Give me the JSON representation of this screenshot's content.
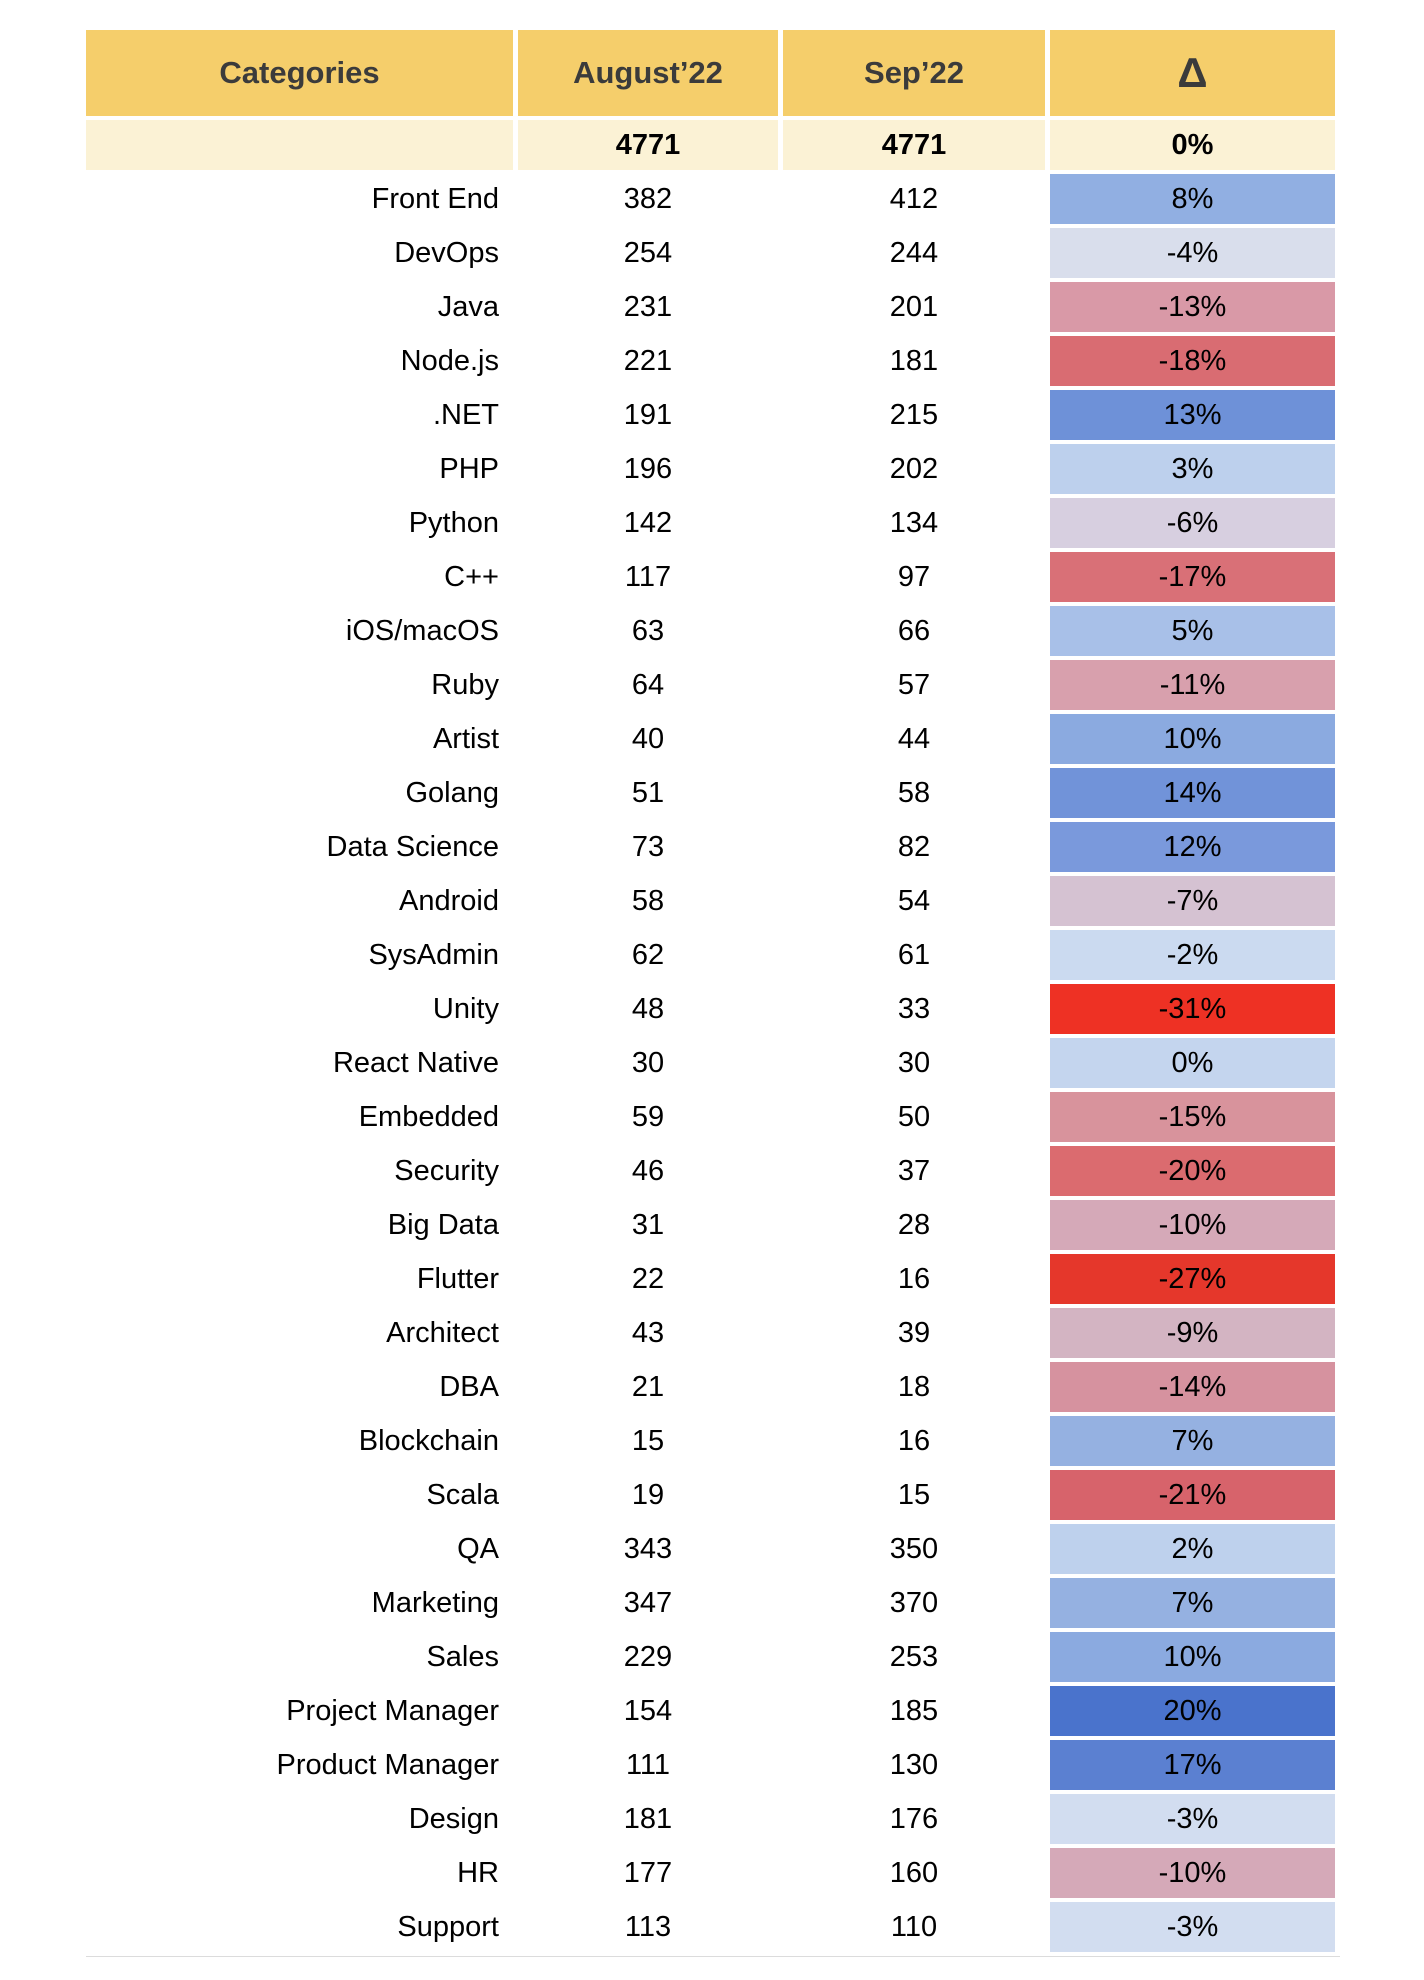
{
  "page": {
    "background": "#FFFFFF"
  },
  "colors": {
    "header_bg": "#F5CE6B",
    "totals_bg": "#FBF2D5",
    "header_text": "#3B3B3B",
    "body_text": "#000000",
    "positive_max_blue": "#4A73CC",
    "negative_max_red": "#EE3124"
  },
  "chart_data": {
    "type": "table",
    "columns": [
      "Categories",
      "August’22",
      "Sep’22",
      "Δ"
    ],
    "total": {
      "august": "4771",
      "sep": "4771",
      "delta": "0%"
    },
    "rows": [
      {
        "category": "Front End",
        "august": 382,
        "sep": 412,
        "delta": "8%",
        "delta_pct": 8,
        "delta_color": "#91AFE2"
      },
      {
        "category": "DevOps",
        "august": 254,
        "sep": 244,
        "delta": "-4%",
        "delta_pct": -4,
        "delta_color": "#D9DEEC"
      },
      {
        "category": "Java",
        "august": 231,
        "sep": 201,
        "delta": "-13%",
        "delta_pct": -13,
        "delta_color": "#D999A7"
      },
      {
        "category": "Node.js",
        "august": 221,
        "sep": 181,
        "delta": "-18%",
        "delta_pct": -18,
        "delta_color": "#D96C72"
      },
      {
        "category": ".NET",
        "august": 191,
        "sep": 215,
        "delta": "13%",
        "delta_pct": 13,
        "delta_color": "#6E91D8"
      },
      {
        "category": "PHP",
        "august": 196,
        "sep": 202,
        "delta": "3%",
        "delta_pct": 3,
        "delta_color": "#BDD0ED"
      },
      {
        "category": "Python",
        "august": 142,
        "sep": 134,
        "delta": "-6%",
        "delta_pct": -6,
        "delta_color": "#D7CFE0"
      },
      {
        "category": "C++",
        "august": 117,
        "sep": 97,
        "delta": "-17%",
        "delta_pct": -17,
        "delta_color": "#D97077"
      },
      {
        "category": "iOS/macOS",
        "august": 63,
        "sep": 66,
        "delta": "5%",
        "delta_pct": 5,
        "delta_color": "#A8C0E8"
      },
      {
        "category": "Ruby",
        "august": 64,
        "sep": 57,
        "delta": "-11%",
        "delta_pct": -11,
        "delta_color": "#D8A0AD"
      },
      {
        "category": "Artist",
        "august": 40,
        "sep": 44,
        "delta": "10%",
        "delta_pct": 10,
        "delta_color": "#8BAAE0"
      },
      {
        "category": "Golang",
        "august": 51,
        "sep": 58,
        "delta": "14%",
        "delta_pct": 14,
        "delta_color": "#7193D9"
      },
      {
        "category": "Data Science",
        "august": 73,
        "sep": 82,
        "delta": "12%",
        "delta_pct": 12,
        "delta_color": "#7A99DC"
      },
      {
        "category": "Android",
        "august": 58,
        "sep": 54,
        "delta": "-7%",
        "delta_pct": -7,
        "delta_color": "#D5C2D2"
      },
      {
        "category": "SysAdmin",
        "august": 62,
        "sep": 61,
        "delta": "-2%",
        "delta_pct": -2,
        "delta_color": "#CBDAF0"
      },
      {
        "category": "Unity",
        "august": 48,
        "sep": 33,
        "delta": "-31%",
        "delta_pct": -31,
        "delta_color": "#EE3124"
      },
      {
        "category": "React Native",
        "august": 30,
        "sep": 30,
        "delta": "0%",
        "delta_pct": 0,
        "delta_color": "#C4D5EE"
      },
      {
        "category": "Embedded",
        "august": 59,
        "sep": 50,
        "delta": "-15%",
        "delta_pct": -15,
        "delta_color": "#D8939C"
      },
      {
        "category": "Security",
        "august": 46,
        "sep": 37,
        "delta": "-20%",
        "delta_pct": -20,
        "delta_color": "#DB6B6F"
      },
      {
        "category": "Big Data",
        "august": 31,
        "sep": 28,
        "delta": "-10%",
        "delta_pct": -10,
        "delta_color": "#D5A9B8"
      },
      {
        "category": "Flutter",
        "august": 22,
        "sep": 16,
        "delta": "-27%",
        "delta_pct": -27,
        "delta_color": "#E5372B"
      },
      {
        "category": "Architect",
        "august": 43,
        "sep": 39,
        "delta": "-9%",
        "delta_pct": -9,
        "delta_color": "#D3B4C2"
      },
      {
        "category": "DBA",
        "august": 21,
        "sep": 18,
        "delta": "-14%",
        "delta_pct": -14,
        "delta_color": "#D6929F"
      },
      {
        "category": "Blockchain",
        "august": 15,
        "sep": 16,
        "delta": "7%",
        "delta_pct": 7,
        "delta_color": "#95B1E1"
      },
      {
        "category": "Scala",
        "august": 19,
        "sep": 15,
        "delta": "-21%",
        "delta_pct": -21,
        "delta_color": "#D7636B"
      },
      {
        "category": "QA",
        "august": 343,
        "sep": 350,
        "delta": "2%",
        "delta_pct": 2,
        "delta_color": "#BED1ED"
      },
      {
        "category": "Marketing",
        "august": 347,
        "sep": 370,
        "delta": "7%",
        "delta_pct": 7,
        "delta_color": "#95B1E1"
      },
      {
        "category": "Sales",
        "august": 229,
        "sep": 253,
        "delta": "10%",
        "delta_pct": 10,
        "delta_color": "#8BAAE0"
      },
      {
        "category": "Project Manager",
        "august": 154,
        "sep": 185,
        "delta": "20%",
        "delta_pct": 20,
        "delta_color": "#4A73CC"
      },
      {
        "category": "Product Manager",
        "august": 111,
        "sep": 130,
        "delta": "17%",
        "delta_pct": 17,
        "delta_color": "#5B80D1"
      },
      {
        "category": "Design",
        "august": 181,
        "sep": 176,
        "delta": "-3%",
        "delta_pct": -3,
        "delta_color": "#D2DDF0"
      },
      {
        "category": "HR",
        "august": 177,
        "sep": 160,
        "delta": "-10%",
        "delta_pct": -10,
        "delta_color": "#D5A9B8"
      },
      {
        "category": "Support",
        "august": 113,
        "sep": 110,
        "delta": "-3%",
        "delta_pct": -3,
        "delta_color": "#D2DDF0"
      }
    ]
  }
}
